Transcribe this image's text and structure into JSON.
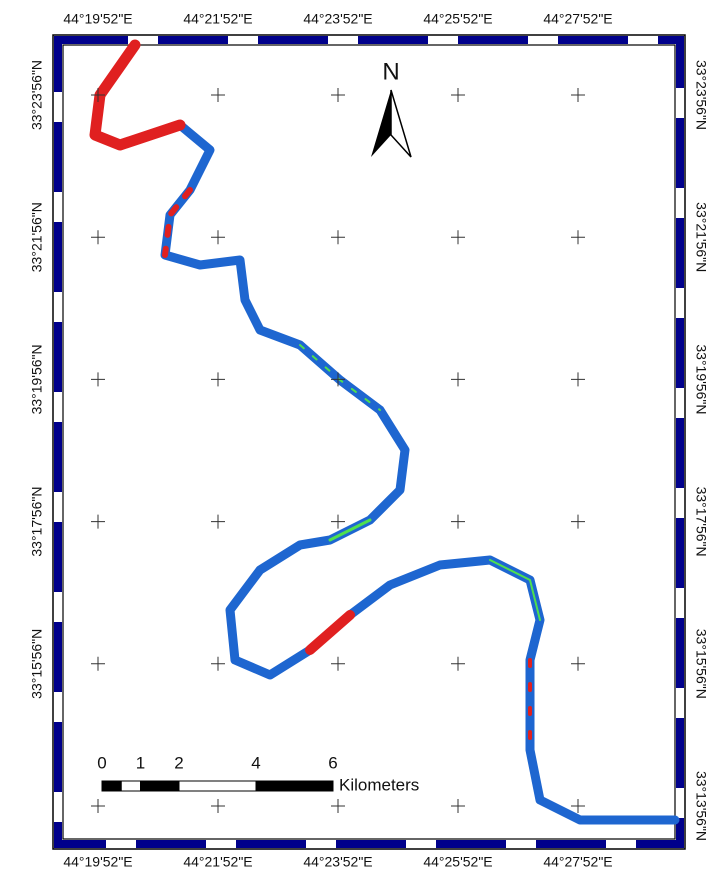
{
  "map": {
    "north_label": "N",
    "top_labels": [
      "44°19'52\"E",
      "44°21'52\"E",
      "44°23'52\"E",
      "44°25'52\"E",
      "44°27'52\"E"
    ],
    "bottom_labels": [
      "44°19'52\"E",
      "44°21'52\"E",
      "44°23'52\"E",
      "44°25'52\"E",
      "44°27'52\"E"
    ],
    "left_labels": [
      "33°23'56\"N",
      "33°21'56\"N",
      "33°19'56\"N",
      "33°17'56\"N",
      "33°15'56\"N"
    ],
    "right_labels": [
      "33°23'56\"N",
      "33°21'56\"N",
      "33°19'56\"N",
      "33°17'56\"N",
      "33°15'56\"N",
      "33°13'56\"N"
    ],
    "scale_bar": {
      "ticks": [
        0,
        1,
        2,
        4,
        6
      ],
      "unit": "Kilometers"
    }
  }
}
